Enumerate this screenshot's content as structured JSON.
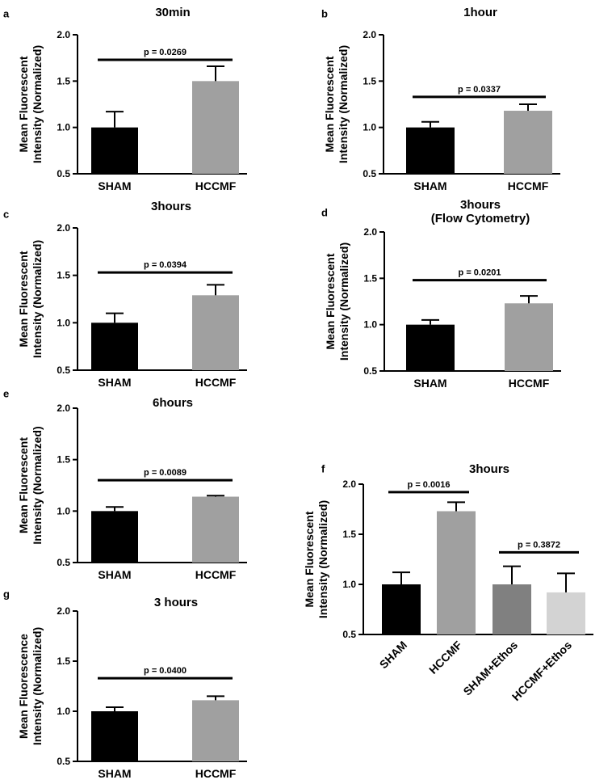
{
  "panels_order": [
    "a",
    "b",
    "c",
    "d",
    "e",
    "f",
    "g"
  ],
  "colors": {
    "SHAM": "#000000",
    "HCCMF": "#a0a0a0",
    "SHAM+Ethos": "#808080",
    "HCCMF+Ethos": "#d3d3d3",
    "axis": "#000000"
  },
  "chart_data": [
    {
      "panel": "a",
      "type": "bar",
      "title": "30min",
      "ylabel": "Mean Fluorescent\nIntensity (Normalized)",
      "ylim": [
        0.5,
        2.0
      ],
      "yticks": [
        "0.5",
        "1.0",
        "1.5",
        "2.0"
      ],
      "categories": [
        "SHAM",
        "HCCMF"
      ],
      "values": [
        1.0,
        1.5
      ],
      "errors": [
        0.17,
        0.16
      ],
      "comparisons": [
        {
          "from": 0,
          "to": 1,
          "level": 1.73,
          "label": "p = 0.0269"
        }
      ]
    },
    {
      "panel": "b",
      "type": "bar",
      "title": "1hour",
      "ylabel": "Mean Fluorescent\nIntensity (Normalized)",
      "ylim": [
        0.5,
        2.0
      ],
      "yticks": [
        "0.5",
        "1.0",
        "1.5",
        "2.0"
      ],
      "categories": [
        "SHAM",
        "HCCMF"
      ],
      "values": [
        1.0,
        1.18
      ],
      "errors": [
        0.06,
        0.07
      ],
      "comparisons": [
        {
          "from": 0,
          "to": 1,
          "level": 1.33,
          "label": "p = 0.0337"
        }
      ]
    },
    {
      "panel": "c",
      "type": "bar",
      "title": "3hours",
      "ylabel": "Mean Fluorescent\nIntensity (Normalized)",
      "ylim": [
        0.5,
        2.0
      ],
      "yticks": [
        "0.5",
        "1.0",
        "1.5",
        "2.0"
      ],
      "categories": [
        "SHAM",
        "HCCMF"
      ],
      "values": [
        1.0,
        1.29
      ],
      "errors": [
        0.1,
        0.11
      ],
      "comparisons": [
        {
          "from": 0,
          "to": 1,
          "level": 1.53,
          "label": "p = 0.0394"
        }
      ]
    },
    {
      "panel": "d",
      "type": "bar",
      "title": "3hours\n(Flow Cytometry)",
      "ylabel": "Mean Fluorescent\nIntensity (Normalized)",
      "ylim": [
        0.5,
        2.0
      ],
      "yticks": [
        "0.5",
        "1.0",
        "1.5",
        "2.0"
      ],
      "categories": [
        "SHAM",
        "HCCMF"
      ],
      "values": [
        1.0,
        1.23
      ],
      "errors": [
        0.05,
        0.08
      ],
      "comparisons": [
        {
          "from": 0,
          "to": 1,
          "level": 1.48,
          "label": "p = 0.0201"
        }
      ]
    },
    {
      "panel": "e",
      "type": "bar",
      "title": "6hours",
      "ylabel": "Mean Fluorescent\nIntensity (Normalized)",
      "ylim": [
        0.5,
        2.0
      ],
      "yticks": [
        "0.5",
        "1.0",
        "1.5",
        "2.0"
      ],
      "categories": [
        "SHAM",
        "HCCMF"
      ],
      "values": [
        1.0,
        1.14
      ],
      "errors": [
        0.04,
        0.01
      ],
      "comparisons": [
        {
          "from": 0,
          "to": 1,
          "level": 1.3,
          "label": "p = 0.0089"
        }
      ]
    },
    {
      "panel": "f",
      "type": "bar",
      "title": "3hours",
      "ylabel": "Mean Fluorescent\nIntensity (Normalized)",
      "ylim": [
        0.5,
        2.0
      ],
      "yticks": [
        "0.5",
        "1.0",
        "1.5",
        "2.0"
      ],
      "categories": [
        "SHAM",
        "HCCMF",
        "SHAM+Ethos",
        "HCCMF+Ethos"
      ],
      "values": [
        1.0,
        1.73,
        1.0,
        0.92
      ],
      "errors": [
        0.12,
        0.09,
        0.18,
        0.19
      ],
      "rotate_labels": true,
      "comparisons": [
        {
          "from": 0,
          "to": 1,
          "level": 1.92,
          "label": "p = 0.0016"
        },
        {
          "from": 2,
          "to": 3,
          "level": 1.32,
          "label": "p = 0.3872"
        }
      ]
    },
    {
      "panel": "g",
      "type": "bar",
      "title": "3 hours",
      "ylabel": "Mean Fluorescence\nIntensity (Normalized)",
      "ylim": [
        0.5,
        2.0
      ],
      "yticks": [
        "0.5",
        "1.0",
        "1.5",
        "2.0"
      ],
      "categories": [
        "SHAM",
        "HCCMF"
      ],
      "values": [
        1.0,
        1.11
      ],
      "errors": [
        0.04,
        0.04
      ],
      "comparisons": [
        {
          "from": 0,
          "to": 1,
          "level": 1.33,
          "label": "p = 0.0400"
        }
      ]
    }
  ]
}
